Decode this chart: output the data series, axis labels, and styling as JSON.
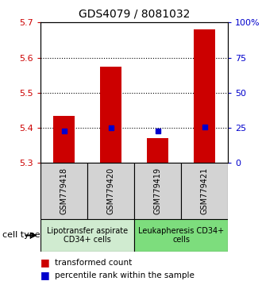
{
  "title": "GDS4079 / 8081032",
  "samples": [
    "GSM779418",
    "GSM779420",
    "GSM779419",
    "GSM779421"
  ],
  "red_values": [
    5.435,
    5.575,
    5.37,
    5.68
  ],
  "blue_values": [
    5.39,
    5.4,
    5.39,
    5.402
  ],
  "ylim_left": [
    5.3,
    5.7
  ],
  "ylim_right": [
    0,
    100
  ],
  "yticks_left": [
    5.3,
    5.4,
    5.5,
    5.6,
    5.7
  ],
  "yticks_right": [
    0,
    25,
    50,
    75,
    100
  ],
  "ytick_labels_right": [
    "0",
    "25",
    "50",
    "75",
    "100%"
  ],
  "group1_label": "Lipotransfer aspirate\nCD34+ cells",
  "group2_label": "Leukapheresis CD34+\ncells",
  "group1_color": "#d0ebd0",
  "group2_color": "#7ddd7d",
  "sample_box_color": "#d3d3d3",
  "cell_type_label": "cell type",
  "legend_red_label": "transformed count",
  "legend_blue_label": "percentile rank within the sample",
  "red_color": "#cc0000",
  "blue_color": "#0000cc",
  "bar_width": 0.45,
  "title_fontsize": 10,
  "tick_fontsize": 8,
  "sample_fontsize": 7,
  "group_fontsize": 7,
  "legend_fontsize": 7.5,
  "cell_type_fontsize": 8,
  "gridlines": [
    5.4,
    5.5,
    5.6
  ]
}
